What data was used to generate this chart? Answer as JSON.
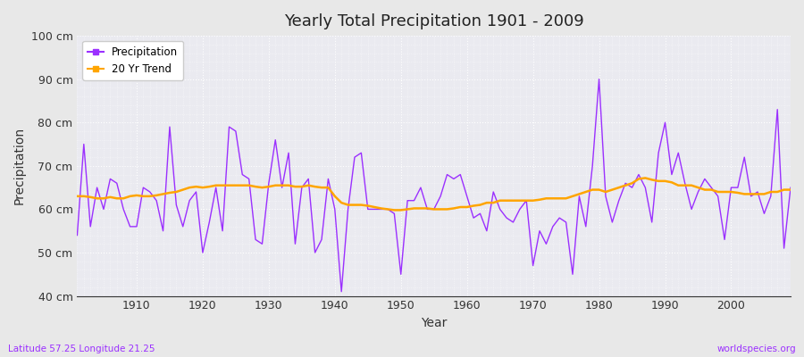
{
  "title": "Yearly Total Precipitation 1901 - 2009",
  "xlabel": "Year",
  "ylabel": "Precipitation",
  "subtitle": "Latitude 57.25 Longitude 21.25",
  "watermark": "worldspecies.org",
  "ylim": [
    40,
    100
  ],
  "ytick_labels": [
    "40 cm",
    "50 cm",
    "60 cm",
    "70 cm",
    "80 cm",
    "90 cm",
    "100 cm"
  ],
  "ytick_values": [
    40,
    50,
    60,
    70,
    80,
    90,
    100
  ],
  "line_color": "#9B30FF",
  "trend_color": "#FFA500",
  "fig_bg_color": "#E8E8E8",
  "plot_bg_color": "#EAEAF0",
  "years": [
    1901,
    1902,
    1903,
    1904,
    1905,
    1906,
    1907,
    1908,
    1909,
    1910,
    1911,
    1912,
    1913,
    1914,
    1915,
    1916,
    1917,
    1918,
    1919,
    1920,
    1921,
    1922,
    1923,
    1924,
    1925,
    1926,
    1927,
    1928,
    1929,
    1930,
    1931,
    1932,
    1933,
    1934,
    1935,
    1936,
    1937,
    1938,
    1939,
    1940,
    1941,
    1942,
    1943,
    1944,
    1945,
    1946,
    1947,
    1948,
    1949,
    1950,
    1951,
    1952,
    1953,
    1954,
    1955,
    1956,
    1957,
    1958,
    1959,
    1960,
    1961,
    1962,
    1963,
    1964,
    1965,
    1966,
    1967,
    1968,
    1969,
    1970,
    1971,
    1972,
    1973,
    1974,
    1975,
    1976,
    1977,
    1978,
    1979,
    1980,
    1981,
    1982,
    1983,
    1984,
    1985,
    1986,
    1987,
    1988,
    1989,
    1990,
    1991,
    1992,
    1993,
    1994,
    1995,
    1996,
    1997,
    1998,
    1999,
    2000,
    2001,
    2002,
    2003,
    2004,
    2005,
    2006,
    2007,
    2008,
    2009
  ],
  "precip": [
    54,
    75,
    56,
    65,
    60,
    67,
    66,
    60,
    56,
    56,
    65,
    64,
    62,
    55,
    79,
    61,
    56,
    62,
    64,
    50,
    57,
    65,
    55,
    79,
    78,
    68,
    67,
    53,
    52,
    66,
    76,
    65,
    73,
    52,
    65,
    67,
    50,
    53,
    67,
    60,
    41,
    60,
    72,
    73,
    60,
    60,
    60,
    60,
    59,
    45,
    62,
    62,
    65,
    60,
    60,
    63,
    68,
    67,
    68,
    63,
    58,
    59,
    55,
    64,
    60,
    58,
    57,
    60,
    62,
    47,
    55,
    52,
    56,
    58,
    57,
    45,
    63,
    56,
    70,
    90,
    63,
    57,
    62,
    66,
    65,
    68,
    65,
    57,
    73,
    80,
    68,
    73,
    66,
    60,
    64,
    67,
    65,
    63,
    53,
    65,
    65,
    72,
    63,
    64,
    59,
    63,
    83,
    51,
    65
  ],
  "trend": [
    63.0,
    63.0,
    62.8,
    62.5,
    62.5,
    62.8,
    62.5,
    62.5,
    63.0,
    63.2,
    63.0,
    63.0,
    63.2,
    63.5,
    63.8,
    64.0,
    64.5,
    65.0,
    65.2,
    65.0,
    65.2,
    65.5,
    65.5,
    65.5,
    65.5,
    65.5,
    65.5,
    65.2,
    65.0,
    65.2,
    65.5,
    65.5,
    65.5,
    65.2,
    65.2,
    65.5,
    65.2,
    65.0,
    65.0,
    63.0,
    61.5,
    61.0,
    61.0,
    61.0,
    60.8,
    60.5,
    60.2,
    60.0,
    59.8,
    59.8,
    60.0,
    60.2,
    60.2,
    60.2,
    60.0,
    60.0,
    60.0,
    60.2,
    60.5,
    60.5,
    60.8,
    61.0,
    61.5,
    61.5,
    62.0,
    62.0,
    62.0,
    62.0,
    62.0,
    62.0,
    62.2,
    62.5,
    62.5,
    62.5,
    62.5,
    63.0,
    63.5,
    64.0,
    64.5,
    64.5,
    64.0,
    64.5,
    65.0,
    65.5,
    66.0,
    67.0,
    67.2,
    66.8,
    66.5,
    66.5,
    66.2,
    65.5,
    65.5,
    65.5,
    65.0,
    64.5,
    64.5,
    64.0,
    64.0,
    64.0,
    63.8,
    63.5,
    63.5,
    63.5,
    63.5,
    64.0,
    64.0,
    64.5,
    64.5
  ]
}
